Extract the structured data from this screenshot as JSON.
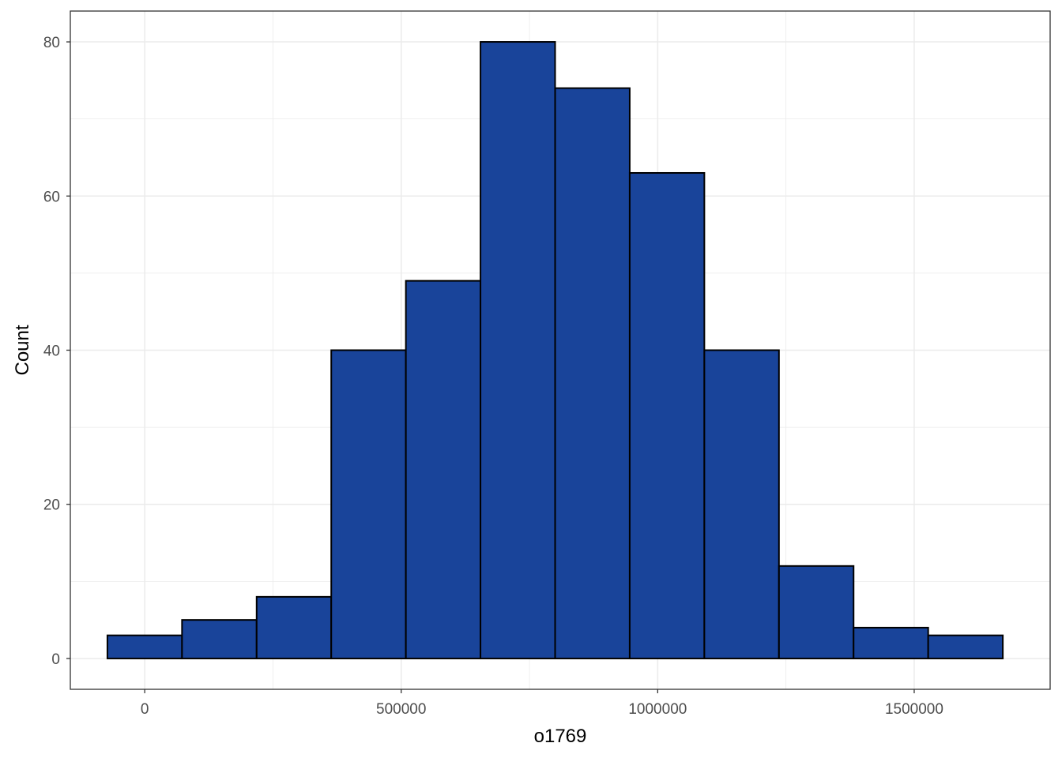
{
  "chart_data": {
    "type": "bar",
    "subtype": "histogram",
    "title": "",
    "xlabel": "o1769",
    "ylabel": "Count",
    "xlim": [
      -145000,
      1765000
    ],
    "ylim": [
      -4,
      84
    ],
    "x_ticks": [
      {
        "value": 0,
        "label": "0"
      },
      {
        "value": 500000,
        "label": "500000"
      },
      {
        "value": 1000000,
        "label": "1000000"
      },
      {
        "value": 1500000,
        "label": "1500000"
      }
    ],
    "y_ticks": [
      {
        "value": 0,
        "label": "0"
      },
      {
        "value": 20,
        "label": "20"
      },
      {
        "value": 40,
        "label": "40"
      },
      {
        "value": 60,
        "label": "60"
      },
      {
        "value": 80,
        "label": "80"
      }
    ],
    "bins": [
      {
        "x_start": -72727,
        "x_end": 72727,
        "count": 3
      },
      {
        "x_start": 72727,
        "x_end": 218182,
        "count": 5
      },
      {
        "x_start": 218182,
        "x_end": 363636,
        "count": 8
      },
      {
        "x_start": 363636,
        "x_end": 509091,
        "count": 40
      },
      {
        "x_start": 509091,
        "x_end": 654545,
        "count": 49
      },
      {
        "x_start": 654545,
        "x_end": 800000,
        "count": 80
      },
      {
        "x_start": 800000,
        "x_end": 945455,
        "count": 74
      },
      {
        "x_start": 945455,
        "x_end": 1090909,
        "count": 63
      },
      {
        "x_start": 1090909,
        "x_end": 1236364,
        "count": 40
      },
      {
        "x_start": 1236364,
        "x_end": 1381818,
        "count": 12
      },
      {
        "x_start": 1381818,
        "x_end": 1527273,
        "count": 4
      },
      {
        "x_start": 1527273,
        "x_end": 1672727,
        "count": 3
      }
    ],
    "grid": true,
    "legend": "none",
    "colors": {
      "bar_fill": "#19449A",
      "bar_stroke": "#000000",
      "grid": "#ebebeb",
      "panel_border": "#333333",
      "tick_text": "#4d4d4d",
      "title_text": "#000000",
      "background": "#ffffff"
    }
  }
}
